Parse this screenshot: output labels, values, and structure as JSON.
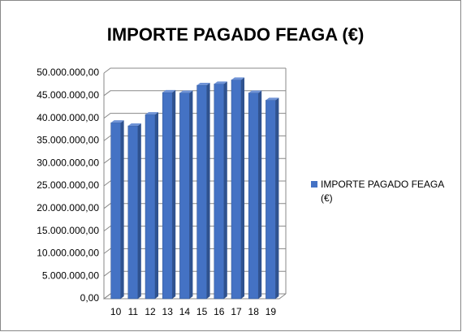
{
  "chart_data": {
    "type": "bar",
    "title": "IMPORTE PAGADO FEAGA (€)",
    "categories": [
      "10",
      "11",
      "12",
      "13",
      "14",
      "15",
      "16",
      "17",
      "18",
      "19"
    ],
    "series": [
      {
        "name": "IMPORTE PAGADO FEAGA (€)",
        "color": "#4472c4",
        "values": [
          39000000,
          38300000,
          40800000,
          45700000,
          45600000,
          47300000,
          47600000,
          48500000,
          45600000,
          44000000
        ]
      }
    ],
    "ylim": [
      0,
      50000000
    ],
    "yticks": [
      {
        "value": 0,
        "label": "0,00"
      },
      {
        "value": 5000000,
        "label": "5.000.000,00"
      },
      {
        "value": 10000000,
        "label": "10.000.000,00"
      },
      {
        "value": 15000000,
        "label": "15.000.000,00"
      },
      {
        "value": 20000000,
        "label": "20.000.000,00"
      },
      {
        "value": 25000000,
        "label": "25.000.000,00"
      },
      {
        "value": 30000000,
        "label": "30.000.000,00"
      },
      {
        "value": 35000000,
        "label": "35.000.000,00"
      },
      {
        "value": 40000000,
        "label": "40.000.000,00"
      },
      {
        "value": 45000000,
        "label": "45.000.000,00"
      },
      {
        "value": 50000000,
        "label": "50.000.000,00"
      }
    ],
    "grid": true,
    "legend": "right"
  }
}
